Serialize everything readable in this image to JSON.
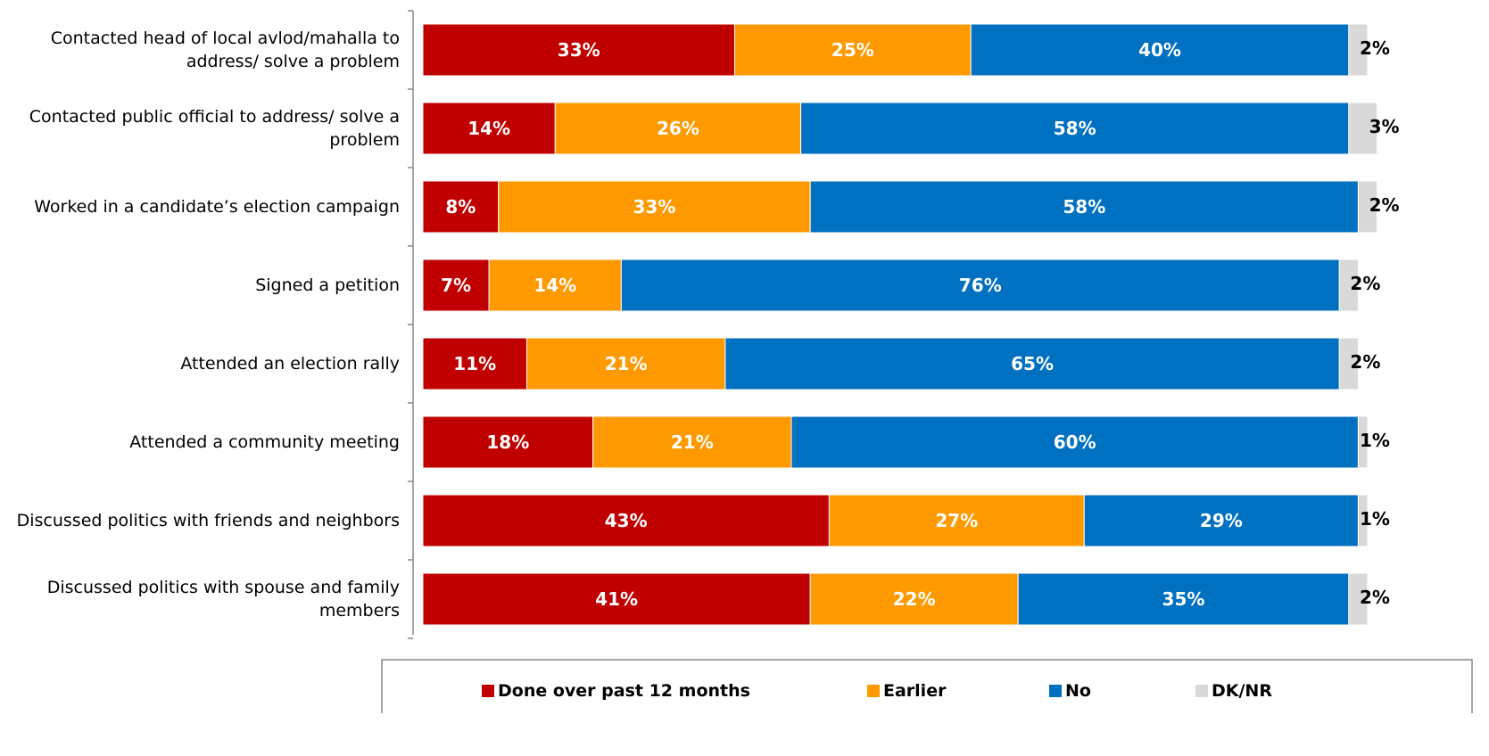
{
  "chart_data": {
    "type": "stacked-bar-horizontal",
    "categories": [
      "Contacted head of local avlod/mahalla to address/ solve a problem",
      "Contacted public official to address/ solve a problem",
      "Worked in a candidate’s election campaign",
      "Signed a petition",
      "Attended an election rally",
      "Attended a community meeting",
      "Discussed politics with friends and neighbors",
      "Discussed politics with spouse and family members"
    ],
    "series": [
      {
        "name": "Done over past 12 months",
        "color": "#c00000",
        "label_color": "#ffffff",
        "values": [
          33,
          14,
          8,
          7,
          11,
          18,
          43,
          41
        ],
        "value_labels": [
          "33%",
          "14%",
          "8%",
          "7%",
          "11%",
          "18%",
          "43%",
          "41%"
        ]
      },
      {
        "name": "Earlier",
        "color": "#ff9900",
        "label_color": "#ffffff",
        "values": [
          25,
          26,
          33,
          14,
          21,
          21,
          27,
          22
        ],
        "value_labels": [
          "25%",
          "26%",
          "33%",
          "14%",
          "21%",
          "21%",
          "27%",
          "22%"
        ]
      },
      {
        "name": "No",
        "color": "#0070c0",
        "label_color": "#ffffff",
        "values": [
          40,
          58,
          58,
          76,
          65,
          60,
          29,
          35
        ],
        "value_labels": [
          "40%",
          "58%",
          "58%",
          "76%",
          "65%",
          "60%",
          "29%",
          "35%"
        ]
      },
      {
        "name": "DK/NR",
        "color": "#d9d9d9",
        "label_color": "#000000",
        "values": [
          2,
          3,
          2,
          2,
          2,
          1,
          1,
          2
        ],
        "value_labels": [
          "2%",
          "3%",
          "2%",
          "2%",
          "2%",
          "1%",
          "1%",
          "2%"
        ]
      }
    ]
  }
}
